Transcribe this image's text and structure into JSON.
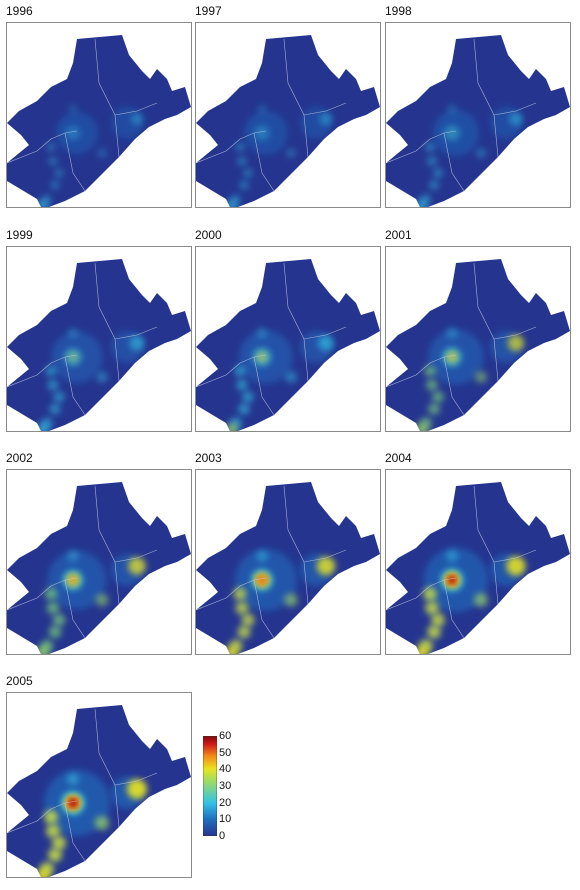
{
  "chart_data": {
    "type": "heatmap",
    "panels": [
      {
        "year": "1996",
        "intensity": 0.2
      },
      {
        "year": "1997",
        "intensity": 0.25
      },
      {
        "year": "1998",
        "intensity": 0.33
      },
      {
        "year": "1999",
        "intensity": 0.5
      },
      {
        "year": "2000",
        "intensity": 0.58
      },
      {
        "year": "2001",
        "intensity": 0.64
      },
      {
        "year": "2002",
        "intensity": 0.75
      },
      {
        "year": "2003",
        "intensity": 0.86
      },
      {
        "year": "2004",
        "intensity": 0.94
      },
      {
        "year": "2005",
        "intensity": 1.0
      }
    ],
    "colorbar": {
      "ticks": [
        "60",
        "50",
        "40",
        "30",
        "20",
        "10",
        "0"
      ],
      "range": [
        0,
        60
      ],
      "colors": [
        "#25358f",
        "#1f6fc0",
        "#33c2e6",
        "#e9e51f",
        "#f28a1a",
        "#d01818",
        "#7a0b0b"
      ]
    },
    "hotspots": [
      {
        "id": "central",
        "peak": 60
      },
      {
        "id": "west-chain",
        "peak": 28
      },
      {
        "id": "east-shore",
        "peak": 35
      },
      {
        "id": "south-tip",
        "peak": 40
      }
    ]
  }
}
